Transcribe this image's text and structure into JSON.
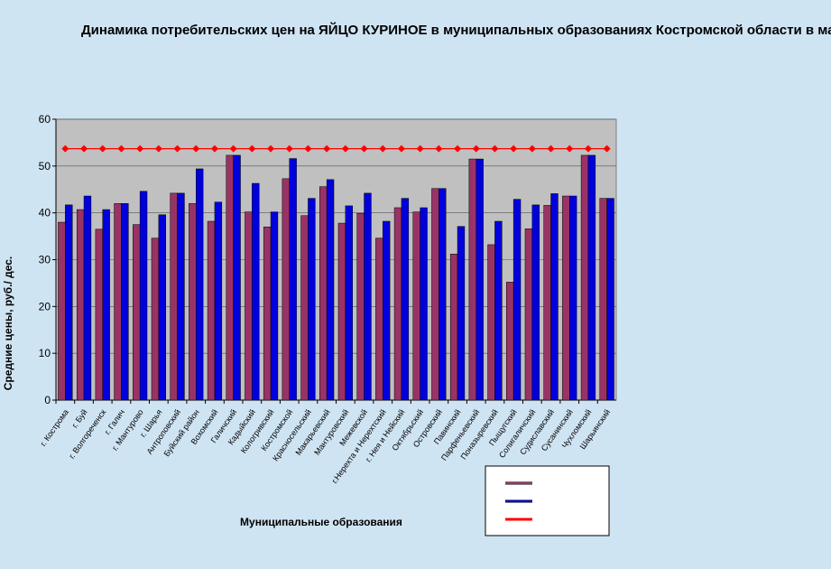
{
  "chart_data": {
    "type": "bar",
    "title": "Динамика потребительских цен на ЯЙЦО КУРИНОЕ в муниципальных образованиях Костромской области в мае",
    "y_label": "Средние цены, руб./ дес.",
    "x_label": "Муниципальные образования",
    "categories": [
      "г. Кострома",
      "г. Буй",
      "г. Волгореченск",
      "г. Галич",
      "г. Мантурово",
      "г. Шарья",
      "Антроповский",
      "Буйский район",
      "Вохомский",
      "Галичский",
      "Кадыйский",
      "Кологривский",
      "Костромской",
      "Красносельский",
      "Макарьевский",
      "Мантуровский",
      "Межевской",
      "г.Нерехта и Нерехтский",
      "г. Нея и Нейский",
      "Октябрьский",
      "Островский",
      "Павинский",
      "Парфеньевский",
      "Поназыревский",
      "Пыщугский",
      "Солигаличский",
      "Судиславский",
      "Сусанинский",
      "Чухломский",
      "Шарьинский"
    ],
    "series": [
      {
        "color": "#993366",
        "values": [
          38,
          40.7,
          36.5,
          42,
          37.5,
          34.6,
          44.2,
          42,
          38.2,
          52.3,
          40.2,
          37,
          47.3,
          39.4,
          45.6,
          37.8,
          39.9,
          34.6,
          41.1,
          40.2,
          45.2,
          31.2,
          51.5,
          33.2,
          25.2,
          36.6,
          41.6,
          43.6,
          52.3,
          43.1
        ]
      },
      {
        "color": "#0000dd",
        "values": [
          41.7,
          43.6,
          40.7,
          42,
          44.6,
          39.6,
          44.2,
          49.4,
          42.3,
          52.3,
          46.3,
          40.2,
          51.6,
          43.1,
          47.1,
          41.5,
          44.2,
          38.2,
          43.1,
          41.1,
          45.2,
          37.1,
          51.5,
          38.2,
          42.9,
          41.7,
          44.1,
          43.6,
          52.3,
          43.1
        ]
      },
      {
        "type": "line",
        "color": "#ff0000",
        "values": [
          53.7,
          53.7,
          53.7,
          53.7,
          53.7,
          53.7,
          53.7,
          53.7,
          53.7,
          53.7,
          53.7,
          53.7,
          53.7,
          53.7,
          53.7,
          53.7,
          53.7,
          53.7,
          53.7,
          53.7,
          53.7,
          53.7,
          53.7,
          53.7,
          53.7,
          53.7,
          53.7,
          53.7,
          53.7,
          53.7
        ]
      }
    ],
    "ylim": [
      0,
      60
    ],
    "yticks": [
      0,
      10,
      20,
      30,
      40,
      50,
      60
    ],
    "grid": true
  }
}
